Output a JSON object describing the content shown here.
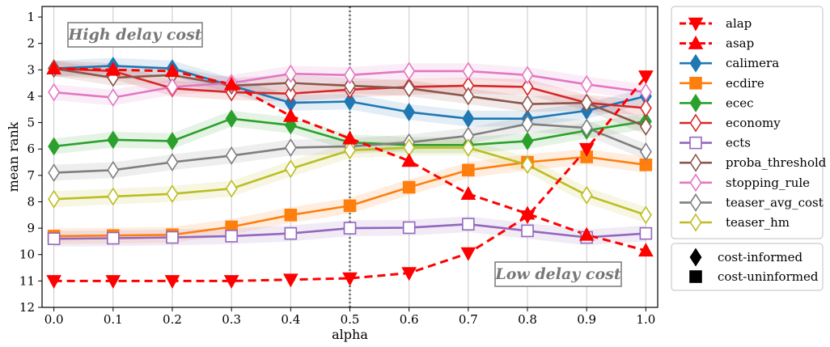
{
  "chart_data": {
    "type": "line",
    "title": "",
    "xlabel": "alpha",
    "ylabel": "mean rank",
    "x": [
      0.0,
      0.1,
      0.2,
      0.3,
      0.4,
      0.5,
      0.6,
      0.7,
      0.8,
      0.9,
      1.0
    ],
    "xticks": [
      "0.0",
      "0.1",
      "0.2",
      "0.3",
      "0.4",
      "0.5",
      "0.6",
      "0.7",
      "0.8",
      "0.9",
      "1.0"
    ],
    "yticks": [
      "1",
      "2",
      "3",
      "4",
      "5",
      "6",
      "7",
      "8",
      "9",
      "10",
      "11",
      "12"
    ],
    "xlim": [
      -0.02,
      1.02
    ],
    "ylim": [
      12,
      0.6
    ],
    "y_inverted": true,
    "grid": "vertical",
    "vline": {
      "x": 0.5,
      "style": "dotted"
    },
    "annotations": [
      {
        "text": "High delay cost",
        "position": "top-left"
      },
      {
        "text": "Low delay cost",
        "position": "bottom-right"
      }
    ],
    "series": [
      {
        "name": "alap",
        "color": "#ff0000",
        "marker": "triangle-down",
        "style": "dashed",
        "fill": true,
        "band": false,
        "values": [
          11.0,
          11.0,
          11.0,
          11.0,
          10.95,
          10.9,
          10.7,
          9.95,
          8.55,
          6.0,
          3.25
        ]
      },
      {
        "name": "asap",
        "color": "#ff0000",
        "marker": "triangle-up",
        "style": "dashed",
        "fill": true,
        "band": false,
        "values": [
          2.95,
          3.0,
          3.05,
          3.55,
          4.75,
          5.6,
          6.45,
          7.7,
          8.45,
          9.25,
          9.85
        ]
      },
      {
        "name": "calimera",
        "color": "#1f77b4",
        "marker": "thin-diamond",
        "style": "solid",
        "fill": true,
        "band": true,
        "values": [
          2.95,
          2.85,
          2.95,
          3.6,
          4.25,
          4.2,
          4.6,
          4.85,
          4.85,
          4.55,
          4.0
        ]
      },
      {
        "name": "ecdire",
        "color": "#ff7f0e",
        "marker": "square",
        "style": "solid",
        "fill": true,
        "band": true,
        "values": [
          9.3,
          9.28,
          9.25,
          8.95,
          8.5,
          8.15,
          7.45,
          6.8,
          6.5,
          6.3,
          6.6
        ]
      },
      {
        "name": "ecec",
        "color": "#2ca02c",
        "marker": "thin-diamond",
        "style": "solid",
        "fill": true,
        "band": true,
        "values": [
          5.9,
          5.65,
          5.7,
          4.85,
          5.1,
          5.75,
          5.85,
          5.85,
          5.7,
          5.3,
          4.95
        ]
      },
      {
        "name": "economy",
        "color": "#d62728",
        "marker": "thin-diamond",
        "style": "solid",
        "fill": false,
        "band": true,
        "values": [
          2.95,
          3.05,
          3.7,
          3.85,
          3.9,
          3.75,
          3.65,
          3.6,
          3.65,
          4.25,
          4.45
        ]
      },
      {
        "name": "ects",
        "color": "#9467bd",
        "marker": "square",
        "style": "solid",
        "fill": false,
        "band": true,
        "values": [
          9.4,
          9.38,
          9.35,
          9.3,
          9.2,
          9.0,
          8.98,
          8.85,
          9.1,
          9.35,
          9.2
        ]
      },
      {
        "name": "proba_threshold",
        "color": "#8c564b",
        "marker": "thin-diamond",
        "style": "solid",
        "fill": false,
        "band": true,
        "values": [
          2.95,
          3.3,
          3.2,
          3.6,
          3.5,
          3.6,
          3.7,
          4.0,
          4.3,
          4.25,
          5.15
        ]
      },
      {
        "name": "stopping_rule",
        "color": "#e377c2",
        "marker": "thin-diamond",
        "style": "solid",
        "fill": false,
        "band": true,
        "values": [
          3.85,
          4.05,
          3.65,
          3.5,
          3.15,
          3.2,
          3.05,
          3.05,
          3.2,
          3.55,
          3.85
        ]
      },
      {
        "name": "teaser_avg_cost",
        "color": "#7f7f7f",
        "marker": "thin-diamond",
        "style": "solid",
        "fill": false,
        "band": true,
        "values": [
          6.9,
          6.8,
          6.5,
          6.25,
          5.95,
          5.9,
          5.75,
          5.5,
          5.05,
          5.2,
          6.1
        ]
      },
      {
        "name": "teaser_hm",
        "color": "#bcbd22",
        "marker": "thin-diamond",
        "style": "solid",
        "fill": false,
        "band": true,
        "values": [
          7.9,
          7.8,
          7.7,
          7.5,
          6.75,
          6.05,
          5.95,
          5.95,
          6.6,
          7.75,
          8.5
        ]
      }
    ],
    "legend": {
      "position": "outside-right",
      "entries": [
        "alap",
        "asap",
        "calimera",
        "ecdire",
        "ecec",
        "economy",
        "ects",
        "proba_threshold",
        "stopping_rule",
        "teaser_avg_cost",
        "teaser_hm"
      ]
    },
    "marker_legend": {
      "position": "outside-right-bottom",
      "entries": [
        {
          "label": "cost-informed",
          "marker": "thin-diamond"
        },
        {
          "label": "cost-uninformed",
          "marker": "square"
        }
      ]
    }
  }
}
